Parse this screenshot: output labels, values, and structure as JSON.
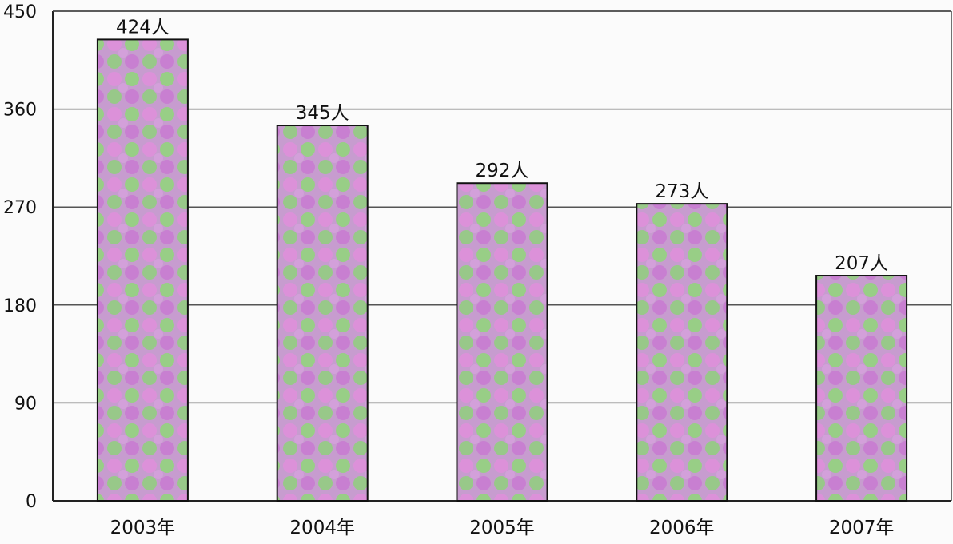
{
  "chart_data": {
    "type": "bar",
    "categories": [
      "2003年",
      "2004年",
      "2005年",
      "2006年",
      "2007年"
    ],
    "values": [
      424,
      345,
      292,
      273,
      207
    ],
    "data_labels": [
      "424人",
      "345人",
      "292人",
      "273人",
      "207人"
    ],
    "yticks": [
      "0",
      "90",
      "180",
      "270",
      "360",
      "450"
    ],
    "ytick_values": [
      0,
      90,
      180,
      270,
      360,
      450
    ],
    "ylim": [
      0,
      450
    ],
    "grid": true,
    "legend": "none",
    "colors": {
      "grid": "#555555",
      "bar_stroke": "#111111",
      "pink": "#d08ad8",
      "green": "#8ccf7c",
      "purple": "#b974c9"
    }
  }
}
